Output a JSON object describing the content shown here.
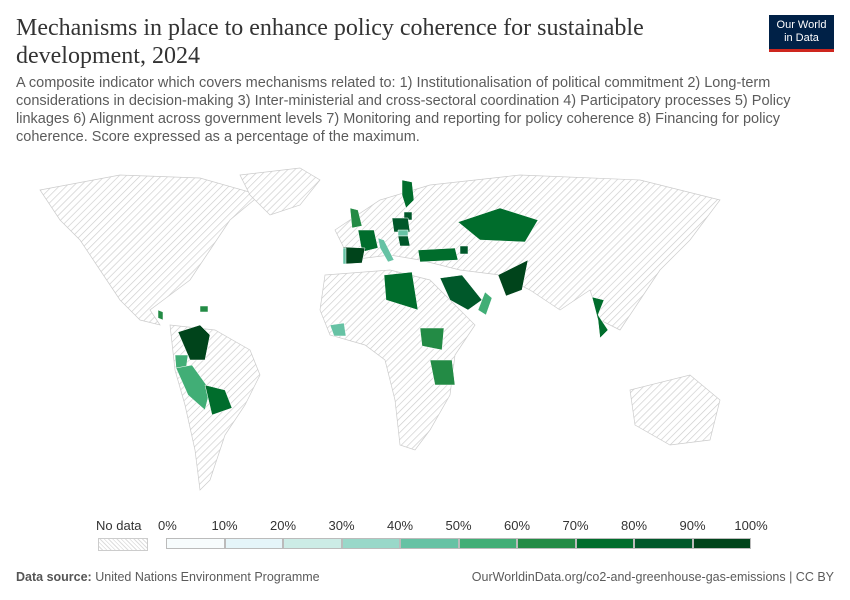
{
  "header": {
    "title": "Mechanisms in place to enhance policy coherence for sustainable development, 2024",
    "subtitle": "A composite indicator which covers mechanisms related to: 1) Institutionalisation of political commitment 2) Long-term considerations in decision-making 3) Inter-ministerial and cross-sectoral coordination 4) Participatory processes 5) Policy linkages 6) Alignment across government levels 7) Monitoring and reporting for policy coherence 8) Financing for policy coherence. Score expressed as a percentage of the maximum.",
    "logo": "Our World in Data"
  },
  "legend": {
    "no_data": "No data",
    "ticks": [
      "0%",
      "10%",
      "20%",
      "30%",
      "40%",
      "50%",
      "60%",
      "70%",
      "80%",
      "90%",
      "100%"
    ],
    "colors": [
      "#f7fcfd",
      "#e5f5f9",
      "#ccece6",
      "#99d8c9",
      "#66c2a4",
      "#41ae76",
      "#238b45",
      "#006d2c",
      "#00582a",
      "#00441b"
    ],
    "no_data_color": "#e0e0e0"
  },
  "map_data": {
    "countries": [
      {
        "name": "Finland",
        "bin": 7
      },
      {
        "name": "Lithuania",
        "bin": 8
      },
      {
        "name": "Poland",
        "bin": 8
      },
      {
        "name": "United Kingdom",
        "bin": 6
      },
      {
        "name": "France",
        "bin": 7
      },
      {
        "name": "Spain",
        "bin": 9
      },
      {
        "name": "Portugal",
        "bin": 4
      },
      {
        "name": "Italy",
        "bin": 4
      },
      {
        "name": "Hungary",
        "bin": 4
      },
      {
        "name": "Serbia",
        "bin": 8
      },
      {
        "name": "Turkey",
        "bin": 7
      },
      {
        "name": "Azerbaijan",
        "bin": 8
      },
      {
        "name": "Kazakhstan",
        "bin": 7
      },
      {
        "name": "Libya",
        "bin": 7
      },
      {
        "name": "Saudi Arabia",
        "bin": 8
      },
      {
        "name": "Oman",
        "bin": 5
      },
      {
        "name": "Pakistan",
        "bin": 9
      },
      {
        "name": "Vietnam",
        "bin": 7
      },
      {
        "name": "Sierra Leone",
        "bin": 4
      },
      {
        "name": "South Sudan",
        "bin": 6
      },
      {
        "name": "Tanzania",
        "bin": 6
      },
      {
        "name": "Colombia",
        "bin": 9
      },
      {
        "name": "Ecuador",
        "bin": 5
      },
      {
        "name": "Peru",
        "bin": 5
      },
      {
        "name": "Bolivia",
        "bin": 7
      },
      {
        "name": "Dominican Republic",
        "bin": 6
      },
      {
        "name": "Costa Rica",
        "bin": 6
      }
    ]
  },
  "footer": {
    "source_label": "Data source:",
    "source": "United Nations Environment Programme",
    "url": "OurWorldinData.org/co2-and-greenhouse-gas-emissions | CC BY"
  }
}
